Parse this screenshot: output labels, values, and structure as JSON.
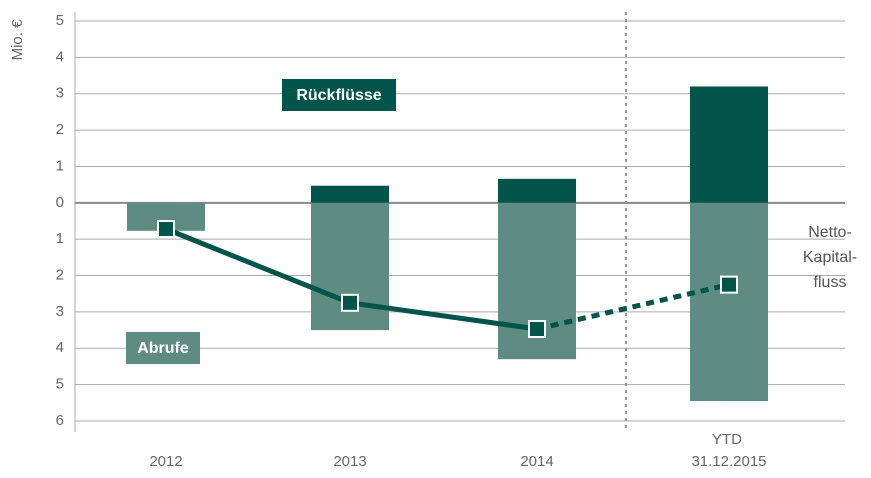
{
  "chart_data": {
    "type": "bar",
    "y_label": "Mio. €",
    "categories": [
      "2012",
      "2013",
      "2014",
      "YTD 31.12.2015"
    ],
    "series": [
      {
        "name": "Rückflüsse",
        "color": "#00544a",
        "values": [
          0,
          0.47,
          0.66,
          3.2
        ]
      },
      {
        "name": "Abrufe",
        "color": "#5e8c82",
        "values": [
          -0.77,
          -3.5,
          -4.3,
          -5.45
        ]
      }
    ],
    "line": {
      "name": [
        "Netto-",
        "Kapital-",
        "fluss"
      ],
      "color": "#00544a",
      "values": [
        -0.72,
        -2.75,
        -3.47,
        -2.25
      ],
      "dash_from": 2
    },
    "separator_before": 3,
    "ylim": [
      -6,
      5
    ],
    "yticks": [
      5,
      4,
      3,
      2,
      1,
      0,
      {
        "value": -1,
        "label": "1"
      },
      {
        "value": -2,
        "label": "2"
      },
      {
        "value": -3,
        "label": "3"
      },
      {
        "value": -4,
        "label": "4"
      },
      {
        "value": -5,
        "label": "5"
      },
      {
        "value": -6,
        "label": "6"
      }
    ],
    "grid": true
  }
}
